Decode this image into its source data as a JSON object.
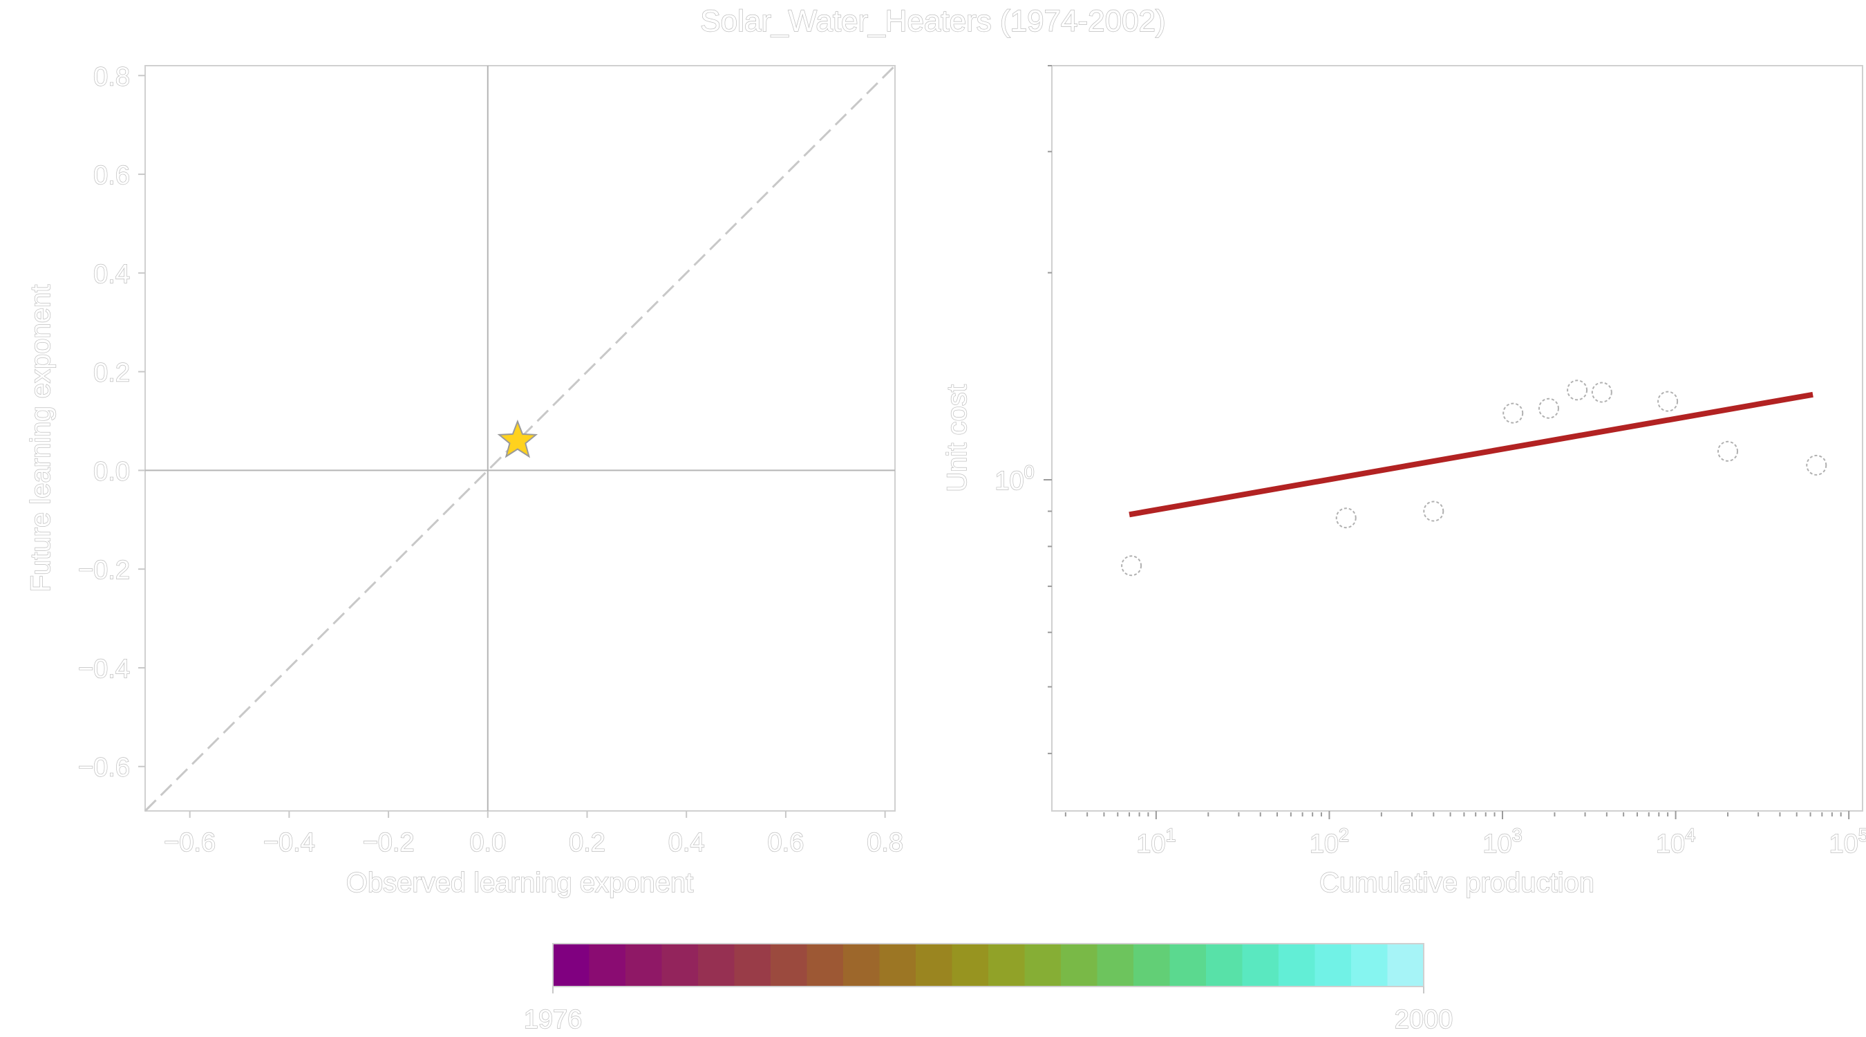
{
  "title": "Solar_Water_Heaters (1974-2002)",
  "colors": {
    "text": "#cfcfcf",
    "axes": "#d0d0d0",
    "zero_lines": "#b5b5b5",
    "diagonal": "#c8c8c8",
    "star_fill": "#ffd21e",
    "star_edge": "#9a9a9a",
    "fit_line": "#b22222",
    "points_edge": "#b0b0b0"
  },
  "chart_data": [
    {
      "type": "scatter",
      "xlabel": "Observed learning exponent",
      "ylabel": "Future learning exponent",
      "xlim": [
        -0.69,
        0.82
      ],
      "ylim": [
        -0.69,
        0.82
      ],
      "xticks": [
        "−0.6",
        "−0.4",
        "−0.2",
        "0.0",
        "0.2",
        "0.4",
        "0.6",
        "0.8"
      ],
      "yticks": [
        "−0.6",
        "−0.4",
        "−0.2",
        "0.0",
        "0.2",
        "0.4",
        "0.6",
        "0.8"
      ],
      "tick_values": [
        -0.6,
        -0.4,
        -0.2,
        0.0,
        0.2,
        0.4,
        0.6,
        0.8
      ],
      "reference_lines": [
        "x=0",
        "y=0",
        "y=x (dashed)"
      ],
      "points": [
        {
          "x": 0.06,
          "y": 0.06,
          "marker": "star"
        }
      ],
      "grid": false
    },
    {
      "type": "scatter",
      "xlabel": "Cumulative production",
      "ylabel": "Unit cost",
      "xscale": "log",
      "yscale": "log",
      "xlim": [
        2.5,
        120000
      ],
      "ylim": [
        0.33,
        4.0
      ],
      "xticks": [
        {
          "value": 10,
          "base": "10",
          "exp": "1"
        },
        {
          "value": 100,
          "base": "10",
          "exp": "2"
        },
        {
          "value": 1000,
          "base": "10",
          "exp": "3"
        },
        {
          "value": 10000,
          "base": "10",
          "exp": "4"
        },
        {
          "value": 100000,
          "base": "10",
          "exp": "5"
        }
      ],
      "yticks": [
        {
          "value": 1,
          "base": "10",
          "exp": "0"
        }
      ],
      "x": [
        7.2,
        125,
        400,
        1150,
        1850,
        2700,
        3750,
        9000,
        20000,
        65000
      ],
      "y": [
        0.75,
        0.88,
        0.9,
        1.25,
        1.27,
        1.35,
        1.34,
        1.3,
        1.1,
        1.05
      ],
      "fit_line": {
        "x": [
          7,
          62000
        ],
        "y": [
          0.89,
          1.33
        ]
      },
      "grid": false
    }
  ],
  "colorbar": {
    "min_label": "1976",
    "max_label": "2000",
    "colors": [
      "#800080",
      "#8a0c72",
      "#8f1866",
      "#93245c",
      "#963052",
      "#993c48",
      "#9b4a3e",
      "#9d5834",
      "#9d672b",
      "#9c7624",
      "#9a8520",
      "#979420",
      "#91a228",
      "#86ae35",
      "#79b947",
      "#6dc45d",
      "#62cf76",
      "#5bd98f",
      "#58e1a8",
      "#5ae8c0",
      "#62eed6",
      "#71f2e6",
      "#86f5f0",
      "#a6f4f7"
    ]
  }
}
